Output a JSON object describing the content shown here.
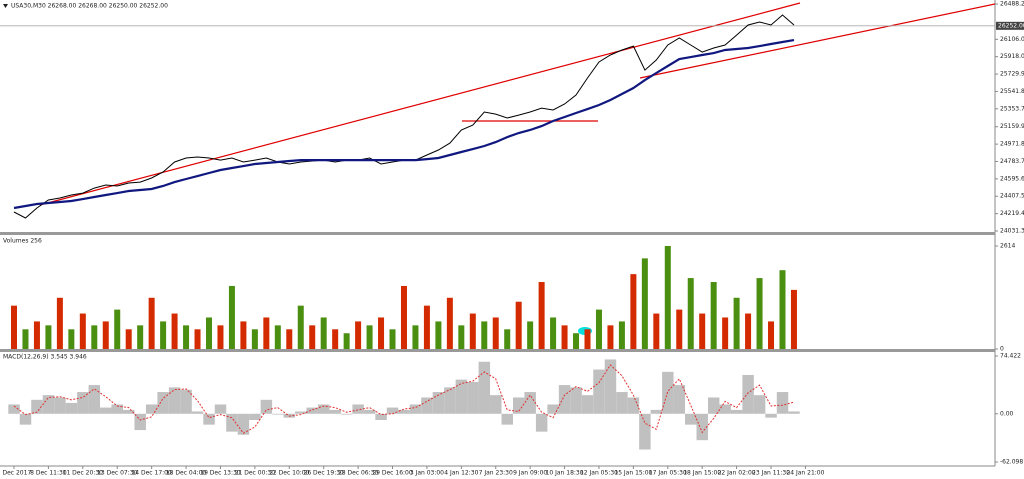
{
  "chart_data": [
    {
      "type": "line",
      "title": "USA30,M30 26268.00 26268.00 26250.00 26252.00",
      "ylim": [
        24031.3,
        26488.2
      ],
      "yticks": [
        {
          "value": 24031.3,
          "label": "24031.30"
        },
        {
          "value": 24219.4,
          "label": "24219.40"
        },
        {
          "value": 24407.5,
          "label": "24407.50"
        },
        {
          "value": 24595.6,
          "label": "24595.60"
        },
        {
          "value": 24783.7,
          "label": "24783.70"
        },
        {
          "value": 24971.8,
          "label": "24971.80"
        },
        {
          "value": 25159.9,
          "label": "25159.90"
        },
        {
          "value": 25353.7,
          "label": "25353.70"
        },
        {
          "value": 25541.8,
          "label": "25541.80"
        },
        {
          "value": 25729.9,
          "label": "25729.90"
        },
        {
          "value": 25918,
          "label": "25918.00"
        },
        {
          "value": 26106,
          "label": "26106.00"
        },
        {
          "value": 26488.2,
          "label": "26488.20"
        }
      ],
      "last_price": {
        "value": 26252,
        "label": "26252.00"
      },
      "series": [
        {
          "color": "#000000",
          "values": [
            24237,
            24172,
            24280,
            24367,
            24388,
            24421,
            24442,
            24496,
            24529,
            24518,
            24551,
            24561,
            24605,
            24670,
            24778,
            24821,
            24832,
            24821,
            24799,
            24821,
            24778,
            24799,
            24821,
            24778,
            24756,
            24778,
            24789,
            24799,
            24778,
            24799,
            24799,
            24821,
            24756,
            24778,
            24799,
            24799,
            24854,
            24908,
            24983,
            25124,
            25178,
            25319,
            25297,
            25254,
            25286,
            25319,
            25362,
            25341,
            25406,
            25503,
            25687,
            25860,
            25936,
            25990,
            26033,
            25773,
            25882,
            26044,
            26120,
            26044,
            25968,
            26012,
            26044,
            26152,
            26261,
            26293,
            26261,
            26369,
            26261,
            null
          ]
        },
        {
          "color": "#101880",
          "values": [
            24280,
            24302,
            24323,
            24334,
            24345,
            24356,
            24377,
            24399,
            24421,
            24442,
            24464,
            24475,
            24486,
            24518,
            24561,
            24594,
            24626,
            24659,
            24691,
            24713,
            24734,
            24756,
            24767,
            24778,
            24789,
            24799,
            24799,
            24799,
            24799,
            24799,
            24799,
            24799,
            24799,
            24799,
            24799,
            24799,
            24810,
            24821,
            24854,
            24886,
            24918,
            24951,
            24994,
            25048,
            25092,
            25124,
            25167,
            25222,
            25265,
            25308,
            25351,
            25395,
            25449,
            25514,
            25579,
            25665,
            25741,
            25817,
            25893,
            25914,
            25936,
            25957,
            25990,
            26001,
            26012,
            26033,
            26055,
            26077,
            26098,
            null
          ]
        }
      ]
    },
    {
      "type": "bar",
      "title": "Volumes 256",
      "ylim": [
        0,
        2614
      ],
      "yticks": [
        0,
        2614
      ],
      "colors": [
        "#d42a00",
        "#4a8f10"
      ],
      "values": [
        1100,
        500,
        700,
        600,
        1300,
        500,
        900,
        600,
        700,
        1000,
        500,
        600,
        1300,
        700,
        900,
        600,
        500,
        800,
        600,
        1600,
        700,
        500,
        800,
        600,
        500,
        1100,
        600,
        800,
        500,
        400,
        700,
        600,
        800,
        500,
        1600,
        600,
        1100,
        700,
        1300,
        600,
        900,
        700,
        800,
        500,
        1200,
        700,
        1700,
        800,
        600,
        400,
        500,
        1000,
        600,
        700,
        1900,
        2300,
        900,
        2614,
        1000,
        1800,
        900,
        1700,
        800,
        1300,
        900,
        1800,
        700,
        2000,
        1500,
        null
      ]
    },
    {
      "type": "macd",
      "title": "MACD(12,26,9) 3.545 3.946",
      "ylim": [
        -62.098,
        74.422
      ],
      "yticks": [
        {
          "value": -62.098,
          "label": "-62.098"
        },
        {
          "value": 0,
          "label": "0.00"
        },
        {
          "value": 74.422,
          "label": "74.422"
        }
      ],
      "color": "#c0c0c0",
      "signal_color": "#e03030",
      "values": [
        12,
        -14,
        18,
        24,
        21,
        14,
        28,
        37,
        8,
        12,
        5,
        -21,
        12,
        28,
        34,
        31,
        3,
        -14,
        12,
        -23,
        -27,
        -8,
        18,
        -1,
        -5,
        3,
        8,
        12,
        5,
        -1,
        12,
        5,
        -8,
        8,
        5,
        12,
        21,
        28,
        34,
        44,
        41,
        67,
        24,
        -14,
        21,
        28,
        -23,
        12,
        37,
        34,
        24,
        57,
        70,
        28,
        21,
        -46,
        5,
        54,
        37,
        -14,
        -34,
        21,
        12,
        5,
        50,
        24,
        -5,
        28,
        3,
        null
      ],
      "signal": [
        10,
        -1,
        2,
        21,
        22,
        18,
        21,
        32,
        22,
        10,
        8,
        -8,
        -4,
        20,
        31,
        32,
        17,
        -5,
        -1,
        -5,
        -25,
        -17,
        5,
        8,
        -3,
        -1,
        5,
        10,
        8,
        2,
        5,
        8,
        -1,
        0,
        6,
        8,
        16,
        24,
        31,
        39,
        42,
        54,
        45,
        5,
        3,
        24,
        2,
        -5,
        24,
        35,
        29,
        40,
        63,
        49,
        24,
        -12,
        -20,
        29,
        45,
        11,
        -24,
        -6,
        16,
        8,
        27,
        37,
        10,
        11,
        15,
        null
      ],
      "categories": [
        "7 Dec 2017",
        null,
        null,
        "8 Dec 11:30",
        null,
        null,
        "11 Dec 20:30",
        null,
        null,
        "13 Dec 07:30",
        null,
        null,
        "14 Dec 17:00",
        null,
        null,
        "18 Dec 04:00",
        null,
        null,
        "19 Dec 13:30",
        null,
        null,
        "21 Dec 00:30",
        null,
        null,
        "22 Dec 10:00",
        null,
        null,
        "26 Dec 19:30",
        null,
        null,
        "28 Dec 06:30",
        null,
        null,
        "29 Dec 16:00",
        null,
        null,
        "3 Jan 03:00",
        null,
        null,
        "4 Jan 12:30",
        null,
        null,
        "7 Jan 23:30",
        null,
        null,
        "9 Jan 09:00",
        null,
        null,
        "10 Jan 18:30",
        null,
        null,
        "12 Jan 05:30",
        null,
        null,
        "15 Jan 15:00",
        null,
        null,
        "17 Jan 05:30",
        null,
        null,
        "18 Jan 15:00",
        null,
        null,
        "22 Jan 02:00",
        null,
        null,
        "23 Jan 11:30",
        null,
        null,
        "24 Jan 21:00"
      ]
    }
  ]
}
